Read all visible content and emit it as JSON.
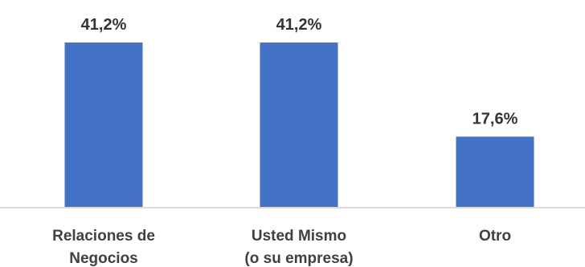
{
  "chart_data": {
    "type": "bar",
    "categories": [
      [
        "Relaciones de",
        "Negocios"
      ],
      [
        "Usted Mismo",
        "(o su empresa)"
      ],
      [
        "Otro"
      ]
    ],
    "values": [
      41.2,
      41.2,
      17.6
    ],
    "data_labels": [
      "41,2%",
      "41,2%",
      "17,6%"
    ],
    "ylim": [
      0,
      41.2
    ],
    "grid": false,
    "legend": "none",
    "bar_color": "#4472C4",
    "axis_color": "#D9D9D9"
  }
}
